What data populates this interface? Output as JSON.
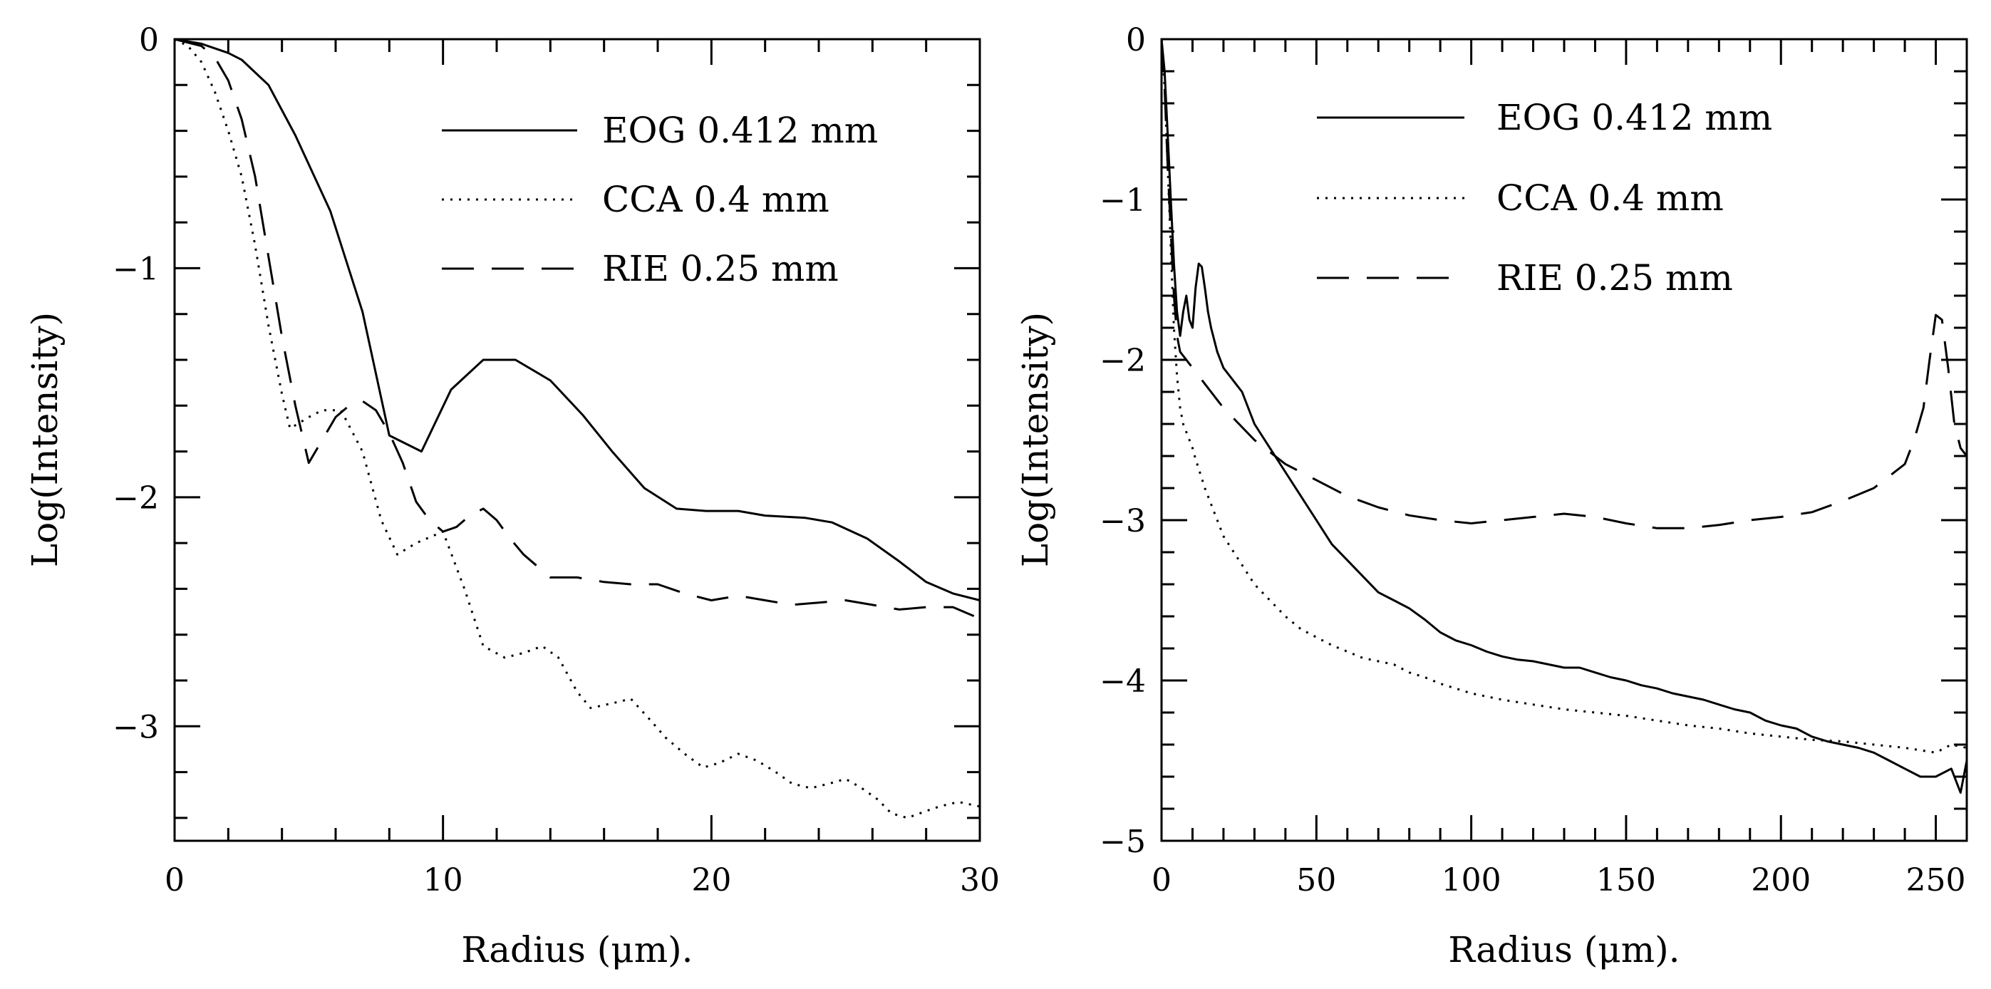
{
  "chart_data": [
    {
      "type": "line",
      "panel": "left",
      "xlabel": "Radius (μm).",
      "ylabel": "Log(Intensity)",
      "xlim": [
        0,
        30
      ],
      "ylim": [
        -3.5,
        0
      ],
      "xticks": [
        0,
        10,
        20,
        30
      ],
      "yticks": [
        0,
        -1,
        -2,
        -3
      ],
      "x_minor_step": 2,
      "y_minor_step": 0.2,
      "legend_position": "top-right",
      "series": [
        {
          "name": "EOG 0.412 mm",
          "style": "solid",
          "x": [
            0,
            1,
            2,
            2.5,
            3.5,
            4.5,
            5.8,
            7,
            8,
            9.2,
            10.3,
            11.5,
            12.7,
            14,
            15.2,
            16.3,
            17.5,
            18.7,
            19.8,
            21,
            22,
            23.5,
            24.5,
            25.8,
            27,
            28,
            29,
            30
          ],
          "y": [
            0,
            -0.02,
            -0.06,
            -0.09,
            -0.2,
            -0.42,
            -0.75,
            -1.19,
            -1.73,
            -1.8,
            -1.53,
            -1.4,
            -1.4,
            -1.49,
            -1.64,
            -1.8,
            -1.96,
            -2.05,
            -2.06,
            -2.06,
            -2.08,
            -2.09,
            -2.11,
            -2.18,
            -2.28,
            -2.37,
            -2.42,
            -2.45
          ]
        },
        {
          "name": "CCA 0.4 mm",
          "style": "dotted",
          "x": [
            0,
            0.5,
            1,
            1.5,
            2,
            2.5,
            3,
            3.5,
            4,
            4.3,
            5,
            5.5,
            6.2,
            7,
            7.7,
            8.3,
            9,
            10,
            10.8,
            11.5,
            12.3,
            13,
            13.7,
            14.3,
            15,
            15.5,
            16.3,
            17,
            17.7,
            18.3,
            19,
            19.7,
            20.3,
            21,
            21.7,
            22.4,
            23,
            23.7,
            24.4,
            25,
            25.6,
            26.2,
            26.7,
            27.3,
            28,
            28.5,
            29.2,
            30
          ],
          "y": [
            0,
            -0.03,
            -0.1,
            -0.23,
            -0.4,
            -0.6,
            -0.9,
            -1.25,
            -1.55,
            -1.7,
            -1.65,
            -1.62,
            -1.62,
            -1.8,
            -2.1,
            -2.25,
            -2.2,
            -2.15,
            -2.4,
            -2.65,
            -2.7,
            -2.68,
            -2.65,
            -2.7,
            -2.85,
            -2.92,
            -2.9,
            -2.88,
            -2.97,
            -3.05,
            -3.12,
            -3.18,
            -3.16,
            -3.12,
            -3.15,
            -3.2,
            -3.25,
            -3.27,
            -3.25,
            -3.23,
            -3.27,
            -3.32,
            -3.38,
            -3.4,
            -3.37,
            -3.35,
            -3.33,
            -3.35
          ]
        },
        {
          "name": "RIE 0.25 mm",
          "style": "dashed",
          "x": [
            0,
            1,
            1.5,
            2,
            2.5,
            3,
            3.5,
            4,
            4.5,
            5,
            5.5,
            6,
            6.5,
            7,
            7.5,
            8,
            8.5,
            9,
            9.5,
            10,
            10.5,
            11,
            11.5,
            12,
            12.5,
            13,
            13.5,
            14,
            15,
            16,
            17,
            18,
            19,
            20,
            21,
            22,
            23,
            24,
            25,
            26,
            27,
            28,
            29,
            30
          ],
          "y": [
            0,
            -0.03,
            -0.08,
            -0.18,
            -0.35,
            -0.6,
            -0.95,
            -1.3,
            -1.6,
            -1.85,
            -1.75,
            -1.65,
            -1.6,
            -1.58,
            -1.62,
            -1.72,
            -1.85,
            -2.02,
            -2.1,
            -2.15,
            -2.13,
            -2.08,
            -2.05,
            -2.1,
            -2.18,
            -2.25,
            -2.3,
            -2.35,
            -2.35,
            -2.37,
            -2.38,
            -2.38,
            -2.42,
            -2.45,
            -2.43,
            -2.45,
            -2.47,
            -2.46,
            -2.45,
            -2.47,
            -2.49,
            -2.48,
            -2.48,
            -2.53
          ]
        }
      ]
    },
    {
      "type": "line",
      "panel": "right",
      "xlabel": "Radius (μm).",
      "ylabel": "Log(Intensity)",
      "xlim": [
        0,
        260
      ],
      "ylim": [
        -5,
        0
      ],
      "xticks": [
        0,
        50,
        100,
        150,
        200,
        250
      ],
      "yticks": [
        0,
        -1,
        -2,
        -3,
        -4,
        -5
      ],
      "x_minor_step": 10,
      "y_minor_step": 0.2,
      "legend_position": "top-center",
      "series": [
        {
          "name": "EOG 0.412 mm",
          "style": "solid",
          "x": [
            0,
            1,
            2,
            3,
            4,
            5,
            6,
            7,
            8,
            9,
            10,
            11,
            12,
            13,
            14,
            15,
            16,
            18,
            20,
            22,
            24,
            26,
            28,
            30,
            35,
            40,
            45,
            50,
            55,
            60,
            65,
            70,
            75,
            80,
            85,
            90,
            95,
            100,
            105,
            110,
            115,
            120,
            125,
            130,
            135,
            140,
            145,
            150,
            155,
            160,
            165,
            170,
            175,
            180,
            185,
            190,
            195,
            200,
            205,
            210,
            215,
            220,
            225,
            230,
            235,
            240,
            245,
            250,
            255,
            258,
            260
          ],
          "y": [
            0,
            -0.2,
            -0.6,
            -1.0,
            -1.4,
            -1.7,
            -1.85,
            -1.7,
            -1.6,
            -1.75,
            -1.8,
            -1.55,
            -1.4,
            -1.42,
            -1.55,
            -1.7,
            -1.8,
            -1.95,
            -2.05,
            -2.1,
            -2.15,
            -2.2,
            -2.3,
            -2.4,
            -2.55,
            -2.7,
            -2.85,
            -3.0,
            -3.15,
            -3.25,
            -3.35,
            -3.45,
            -3.5,
            -3.55,
            -3.62,
            -3.7,
            -3.75,
            -3.78,
            -3.82,
            -3.85,
            -3.87,
            -3.88,
            -3.9,
            -3.92,
            -3.92,
            -3.95,
            -3.98,
            -4.0,
            -4.03,
            -4.05,
            -4.08,
            -4.1,
            -4.12,
            -4.15,
            -4.18,
            -4.2,
            -4.25,
            -4.28,
            -4.3,
            -4.35,
            -4.38,
            -4.4,
            -4.42,
            -4.45,
            -4.5,
            -4.55,
            -4.6,
            -4.6,
            -4.55,
            -4.7,
            -4.5
          ]
        },
        {
          "name": "CCA 0.4 mm",
          "style": "dotted",
          "x": [
            0,
            1,
            2,
            3,
            4,
            5,
            6,
            7,
            8,
            9,
            10,
            11,
            12,
            14,
            16,
            18,
            20,
            25,
            30,
            35,
            40,
            45,
            50,
            55,
            60,
            65,
            70,
            75,
            80,
            85,
            90,
            95,
            100,
            110,
            120,
            130,
            140,
            150,
            160,
            170,
            180,
            190,
            200,
            210,
            220,
            230,
            240,
            250,
            255,
            260
          ],
          "y": [
            0,
            -0.3,
            -0.8,
            -1.3,
            -1.8,
            -2.1,
            -2.3,
            -2.4,
            -2.45,
            -2.5,
            -2.55,
            -2.62,
            -2.68,
            -2.8,
            -2.9,
            -3.0,
            -3.1,
            -3.25,
            -3.4,
            -3.5,
            -3.6,
            -3.68,
            -3.73,
            -3.78,
            -3.82,
            -3.86,
            -3.88,
            -3.9,
            -3.95,
            -3.98,
            -4.02,
            -4.05,
            -4.08,
            -4.12,
            -4.15,
            -4.18,
            -4.2,
            -4.22,
            -4.25,
            -4.28,
            -4.3,
            -4.33,
            -4.35,
            -4.37,
            -4.38,
            -4.4,
            -4.42,
            -4.45,
            -4.4,
            -4.42
          ]
        },
        {
          "name": "RIE 0.25 mm",
          "style": "dashed",
          "x": [
            0,
            1,
            2,
            3,
            4,
            5,
            6,
            8,
            10,
            12,
            14,
            16,
            18,
            20,
            25,
            30,
            40,
            50,
            60,
            70,
            80,
            90,
            100,
            110,
            120,
            130,
            140,
            150,
            160,
            170,
            180,
            190,
            200,
            210,
            220,
            230,
            240,
            243,
            246,
            248,
            250,
            252,
            254,
            256,
            258,
            260
          ],
          "y": [
            0,
            -0.3,
            -0.8,
            -1.2,
            -1.6,
            -1.85,
            -1.95,
            -2.0,
            -2.05,
            -2.1,
            -2.15,
            -2.2,
            -2.25,
            -2.3,
            -2.4,
            -2.5,
            -2.65,
            -2.75,
            -2.85,
            -2.92,
            -2.97,
            -3.0,
            -3.02,
            -3.0,
            -2.98,
            -2.96,
            -2.98,
            -3.02,
            -3.05,
            -3.05,
            -3.03,
            -3.0,
            -2.98,
            -2.95,
            -2.88,
            -2.8,
            -2.65,
            -2.5,
            -2.3,
            -2.0,
            -1.72,
            -1.75,
            -2.05,
            -2.4,
            -2.55,
            -2.6
          ]
        }
      ]
    }
  ]
}
